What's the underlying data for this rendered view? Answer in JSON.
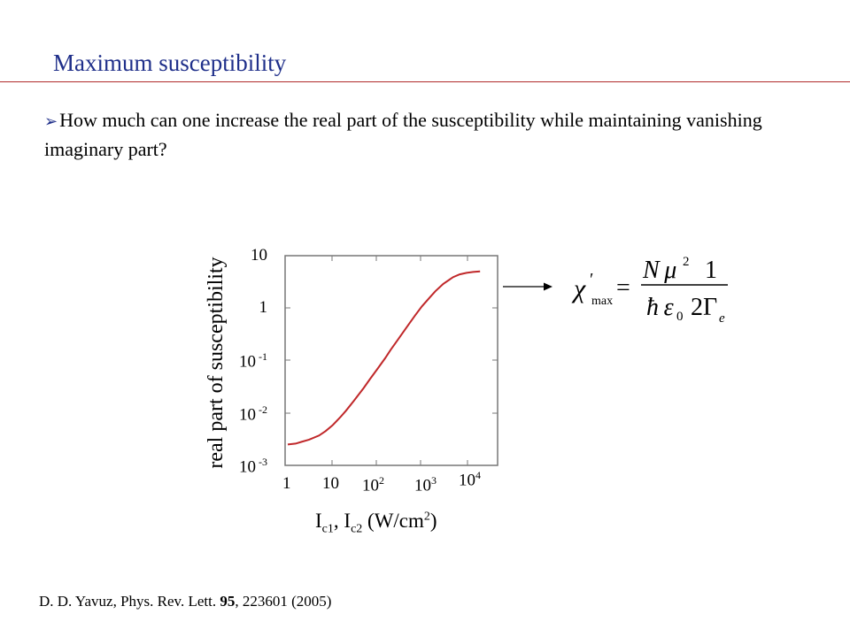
{
  "slide": {
    "title": "Maximum  susceptibility",
    "bullet_marker": "➢",
    "bullet_text": "How much can one increase the real part of the susceptibility while maintaining vanishing imaginary part?",
    "citation_prefix": "D. D. Yavuz, Phys. Rev. Lett. ",
    "citation_volume": "95",
    "citation_suffix": ", 223601 (2005)"
  },
  "formula": {
    "lhs_symbol": "χ",
    "lhs_prime": "′",
    "lhs_subscript": "max",
    "equals": "=",
    "frac1_num": "N μ",
    "frac1_num_exp": "2",
    "frac1_den": "ħ ε",
    "frac1_den_sub": "0",
    "frac2_num": "1",
    "frac2_den": "2Γ",
    "frac2_den_sub": "e"
  },
  "chart_data": {
    "type": "line",
    "xlabel_main": "I",
    "xlabel_sub1": "c1",
    "xlabel_mid": ", I",
    "xlabel_sub2": "c2",
    "xlabel_unit": " (W/cm",
    "xlabel_unit_exp": "2",
    "xlabel_close": ")",
    "ylabel": "real part of susceptibility",
    "x_scale": "log",
    "y_scale": "log",
    "xlim": [
      1,
      20000
    ],
    "ylim": [
      0.001,
      10
    ],
    "x_ticks": [
      {
        "base": "1",
        "exp": ""
      },
      {
        "base": "10",
        "exp": ""
      },
      {
        "base": "10",
        "exp": "2"
      },
      {
        "base": "10",
        "exp": "3"
      },
      {
        "base": "10",
        "exp": "4"
      }
    ],
    "y_ticks": [
      {
        "base": "10",
        "exp": ""
      },
      {
        "base": "1",
        "exp": ""
      },
      {
        "base": "10",
        "exp": " -1"
      },
      {
        "base": "10",
        "exp": " -2"
      },
      {
        "base": "10",
        "exp": " -3"
      }
    ],
    "series": [
      {
        "color": "#c0282a",
        "x": [
          1,
          1.5,
          2,
          3,
          5,
          7,
          10,
          15,
          20,
          30,
          50,
          70,
          100,
          150,
          200,
          300,
          500,
          700,
          1000,
          1500,
          2000,
          3000,
          5000,
          7000,
          10000,
          14000,
          20000
        ],
        "y": [
          0.0025,
          0.0026,
          0.0028,
          0.0031,
          0.0037,
          0.0045,
          0.0058,
          0.0083,
          0.011,
          0.017,
          0.03,
          0.045,
          0.068,
          0.11,
          0.16,
          0.26,
          0.48,
          0.72,
          1.08,
          1.6,
          2.1,
          2.9,
          3.9,
          4.4,
          4.7,
          4.9,
          5.0
        ]
      }
    ],
    "arrow": "to-formula"
  }
}
